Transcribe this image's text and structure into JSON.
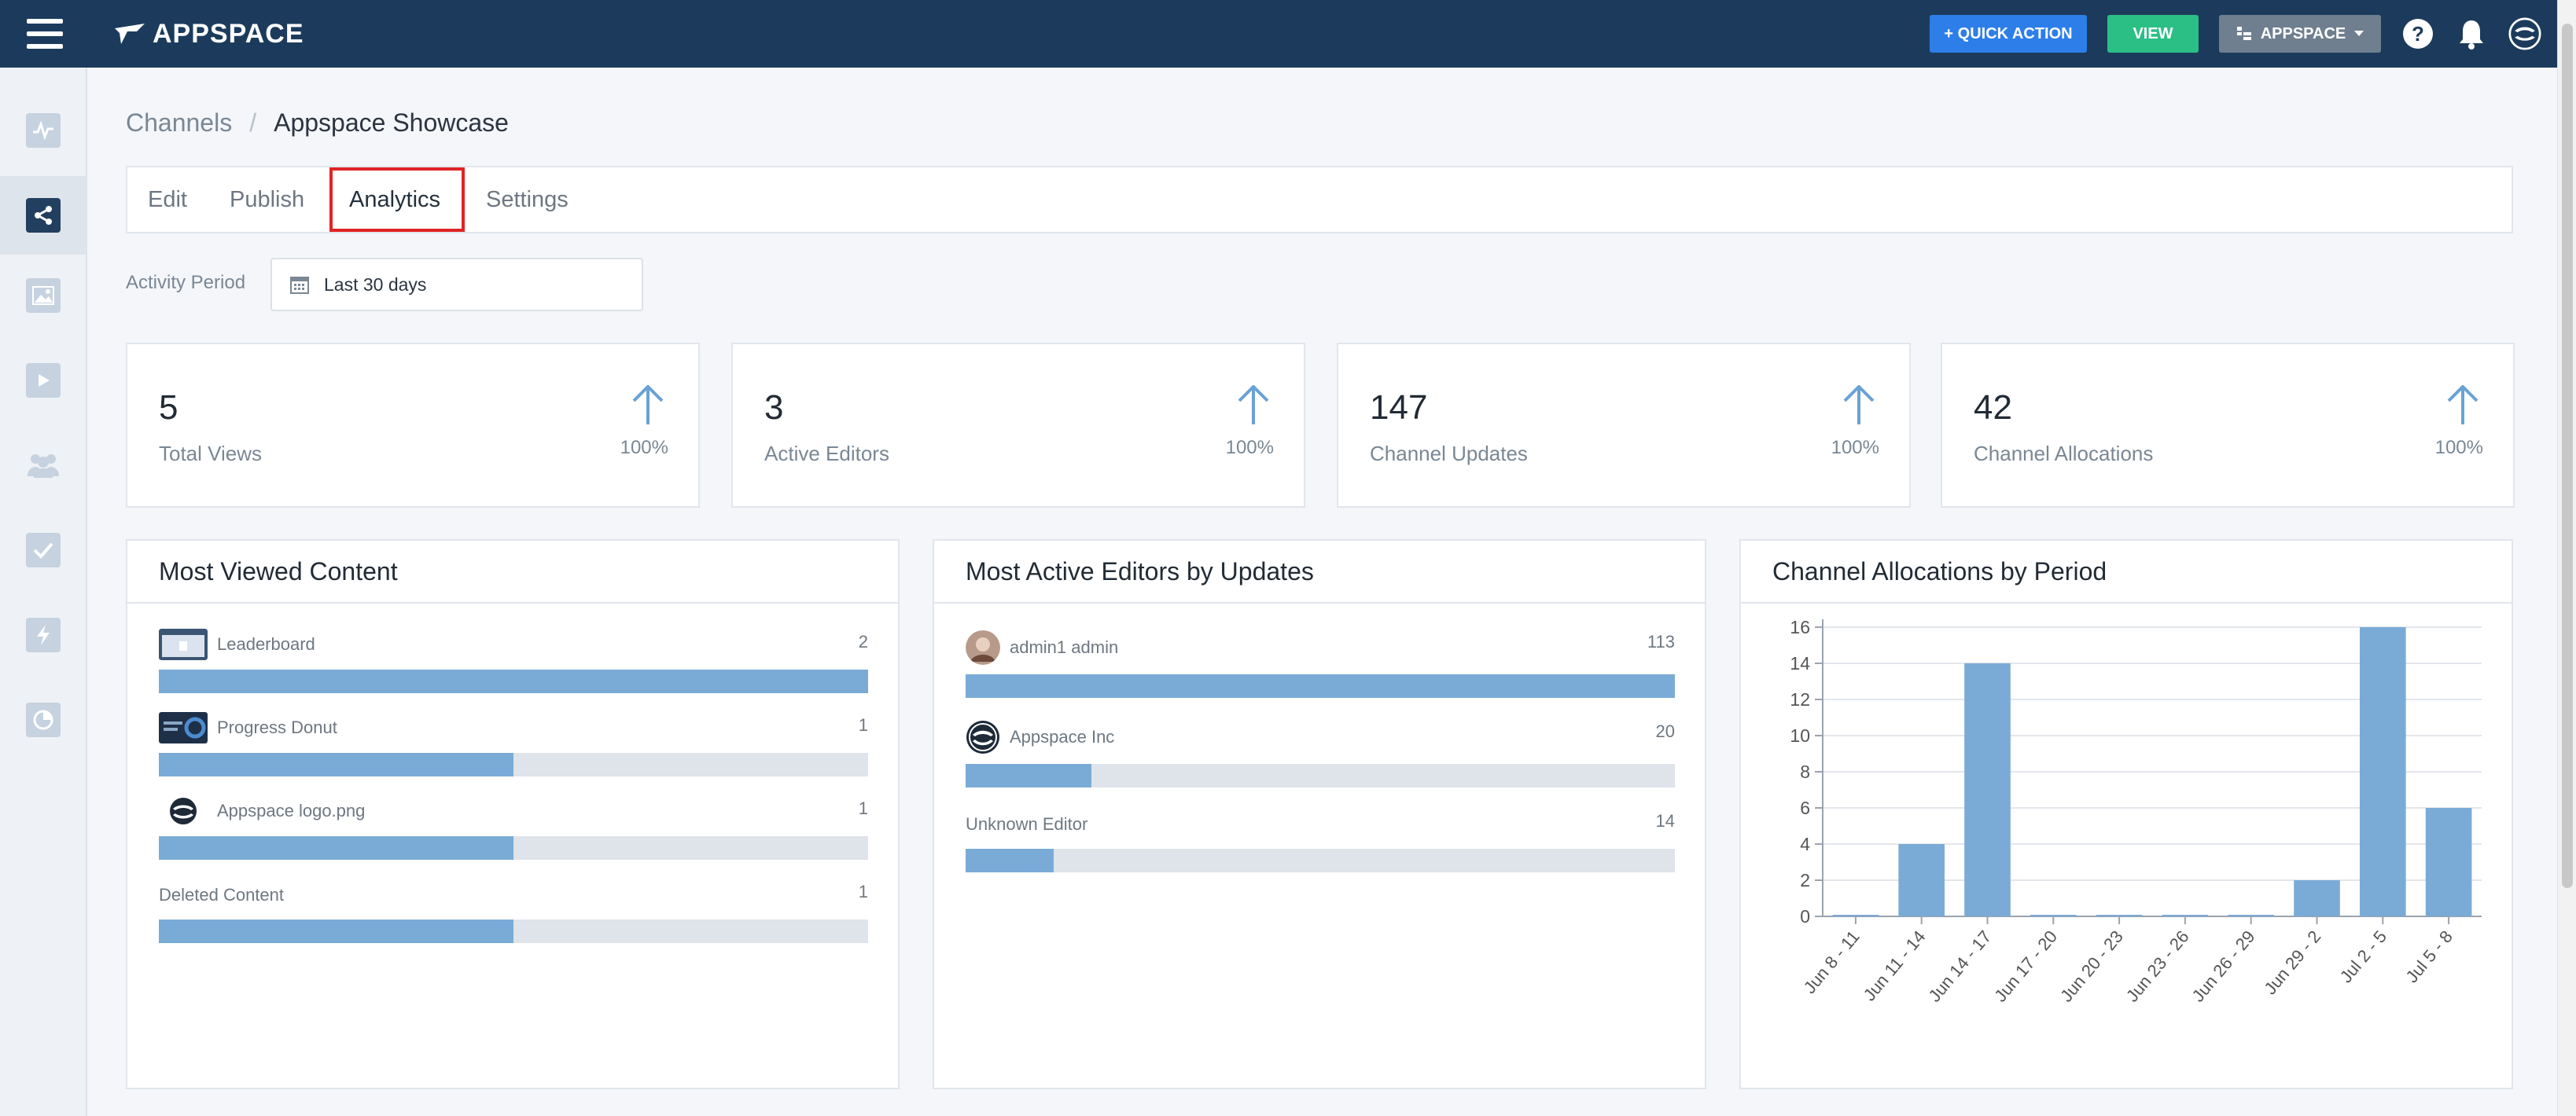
{
  "topbar": {
    "logo_text": "APPSPACE",
    "quick_action_label": "+ QUICK ACTION",
    "view_label": "VIEW",
    "space_label": "APPSPACE"
  },
  "sidebar": {
    "items": [
      {
        "icon": "activity-icon"
      },
      {
        "icon": "share-icon",
        "active": true
      },
      {
        "icon": "image-icon"
      },
      {
        "icon": "video-icon"
      },
      {
        "icon": "users-icon"
      },
      {
        "icon": "checkbox-icon"
      },
      {
        "icon": "lightning-icon"
      },
      {
        "icon": "pie-chart-icon"
      }
    ]
  },
  "breadcrumb": {
    "parent": "Channels",
    "separator": "/",
    "current": "Appspace Showcase"
  },
  "tabs": [
    "Edit",
    "Publish",
    "Analytics",
    "Settings"
  ],
  "activity_period": {
    "label": "Activity Period",
    "value": "Last 30 days"
  },
  "stats": [
    {
      "value": "5",
      "label": "Total Views",
      "pct": "100%"
    },
    {
      "value": "3",
      "label": "Active Editors",
      "pct": "100%"
    },
    {
      "value": "147",
      "label": "Channel Updates",
      "pct": "100%"
    },
    {
      "value": "42",
      "label": "Channel Allocations",
      "pct": "100%"
    }
  ],
  "most_viewed": {
    "title": "Most Viewed Content",
    "rows": [
      {
        "label": "Leaderboard",
        "count": "2",
        "fraction": 1.0
      },
      {
        "label": "Progress Donut",
        "count": "1",
        "fraction": 0.5
      },
      {
        "label": "Appspace logo.png",
        "count": "1",
        "fraction": 0.5
      },
      {
        "label": "Deleted Content",
        "count": "1",
        "fraction": 0.5
      }
    ]
  },
  "active_editors": {
    "title": "Most Active Editors by Updates",
    "rows": [
      {
        "label": "admin1 admin",
        "count": "113",
        "fraction": 1.0
      },
      {
        "label": "Appspace Inc",
        "count": "20",
        "fraction": 0.177
      },
      {
        "label": "Unknown Editor",
        "count": "14",
        "fraction": 0.124
      }
    ]
  },
  "allocations": {
    "title": "Channel Allocations by Period"
  },
  "chart_data": {
    "type": "bar",
    "title": "Channel Allocations by Period",
    "categories": [
      "Jun 8 - 11",
      "Jun 11 - 14",
      "Jun 14 - 17",
      "Jun 17 - 20",
      "Jun 20 - 23",
      "Jun 23 - 26",
      "Jun 26 - 29",
      "Jun 29 - 2",
      "Jul 2 - 5",
      "Jul 5 - 8"
    ],
    "values": [
      0,
      4,
      14,
      0,
      0,
      0,
      0,
      2,
      16,
      6
    ],
    "ylim": [
      0,
      16
    ],
    "yticks": [
      0,
      2,
      4,
      6,
      8,
      10,
      12,
      14,
      16
    ],
    "grid": true,
    "bar_color": "#7aabd6"
  },
  "colors": {
    "topbar": "#1c3b5c",
    "quick_action": "#2d7ee8",
    "view": "#2bbf86",
    "bar": "#7aabd6",
    "highlight": "#e02424"
  }
}
